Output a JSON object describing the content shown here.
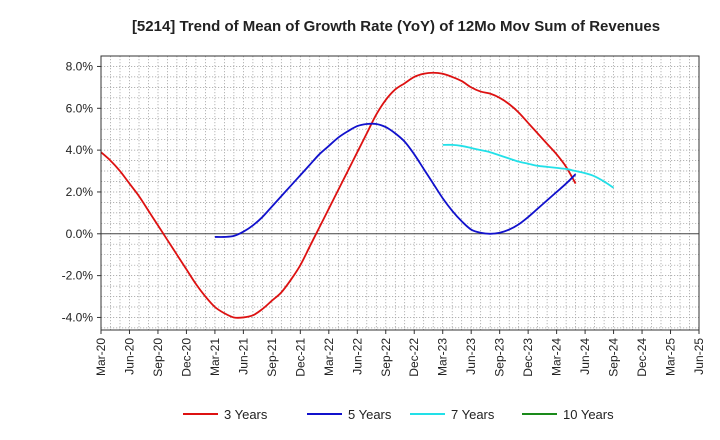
{
  "chart_data": {
    "type": "line",
    "title": "[5214]  Trend of Mean of Growth Rate (YoY) of 12Mo Mov Sum of Revenues",
    "xlabel": "",
    "ylabel": "",
    "ylim": [
      -4.6,
      8.5
    ],
    "y_ticks": [
      -4.0,
      -2.0,
      0.0,
      2.0,
      4.0,
      6.0,
      8.0
    ],
    "y_tick_labels": [
      "-4.0%",
      "-2.0%",
      "0.0%",
      "2.0%",
      "4.0%",
      "6.0%",
      "8.0%"
    ],
    "x_months": [
      "2020-03",
      "2020-04",
      "2020-05",
      "2020-06",
      "2020-07",
      "2020-08",
      "2020-09",
      "2020-10",
      "2020-11",
      "2020-12",
      "2021-01",
      "2021-02",
      "2021-03",
      "2021-04",
      "2021-05",
      "2021-06",
      "2021-07",
      "2021-08",
      "2021-09",
      "2021-10",
      "2021-11",
      "2021-12",
      "2022-01",
      "2022-02",
      "2022-03",
      "2022-04",
      "2022-05",
      "2022-06",
      "2022-07",
      "2022-08",
      "2022-09",
      "2022-10",
      "2022-11",
      "2022-12",
      "2023-01",
      "2023-02",
      "2023-03",
      "2023-04",
      "2023-05",
      "2023-06",
      "2023-07",
      "2023-08",
      "2023-09",
      "2023-10",
      "2023-11",
      "2023-12",
      "2024-01",
      "2024-02",
      "2024-03",
      "2024-04",
      "2024-05",
      "2024-06",
      "2024-07",
      "2024-08",
      "2024-09",
      "2024-10",
      "2024-11",
      "2024-12",
      "2025-01",
      "2025-02",
      "2025-03",
      "2025-04",
      "2025-05",
      "2025-06"
    ],
    "x_tick_labels": [
      "Mar-20",
      "Jun-20",
      "Sep-20",
      "Dec-20",
      "Mar-21",
      "Jun-21",
      "Sep-21",
      "Dec-21",
      "Mar-22",
      "Jun-22",
      "Sep-22",
      "Dec-22",
      "Mar-23",
      "Jun-23",
      "Sep-23",
      "Dec-23",
      "Mar-24",
      "Jun-24",
      "Sep-24",
      "Dec-24",
      "Mar-25",
      "Jun-25"
    ],
    "grid": true,
    "legend_position": "bottom",
    "series": [
      {
        "name": "3 Years",
        "color": "#dd1111",
        "start_month_index": 0,
        "values": [
          3.9,
          3.5,
          3.0,
          2.4,
          1.8,
          1.1,
          0.4,
          -0.3,
          -1.0,
          -1.7,
          -2.4,
          -3.0,
          -3.5,
          -3.8,
          -4.0,
          -4.0,
          -3.9,
          -3.6,
          -3.2,
          -2.8,
          -2.2,
          -1.5,
          -0.6,
          0.3,
          1.2,
          2.1,
          3.0,
          3.9,
          4.8,
          5.7,
          6.4,
          6.9,
          7.2,
          7.5,
          7.65,
          7.7,
          7.65,
          7.5,
          7.3,
          7.0,
          6.8,
          6.7,
          6.5,
          6.2,
          5.8,
          5.3,
          4.8,
          4.3,
          3.8,
          3.2,
          2.4
        ]
      },
      {
        "name": "5 Years",
        "color": "#1111cc",
        "start_month_index": 12,
        "values": [
          -0.15,
          -0.15,
          -0.1,
          0.1,
          0.4,
          0.8,
          1.3,
          1.8,
          2.3,
          2.8,
          3.3,
          3.8,
          4.2,
          4.6,
          4.9,
          5.15,
          5.25,
          5.25,
          5.1,
          4.8,
          4.4,
          3.8,
          3.1,
          2.4,
          1.7,
          1.1,
          0.6,
          0.2,
          0.05,
          0.0,
          0.05,
          0.2,
          0.45,
          0.8,
          1.2,
          1.6,
          2.0,
          2.4,
          2.85
        ]
      },
      {
        "name": "7 Years",
        "color": "#22e0e8",
        "start_month_index": 36,
        "values": [
          4.25,
          4.25,
          4.2,
          4.1,
          4.0,
          3.9,
          3.75,
          3.6,
          3.45,
          3.35,
          3.25,
          3.2,
          3.15,
          3.1,
          3.0,
          2.9,
          2.75,
          2.5,
          2.2
        ]
      },
      {
        "name": "10 Years",
        "color": "#1a8a1a",
        "start_month_index": 0,
        "values": []
      }
    ]
  }
}
